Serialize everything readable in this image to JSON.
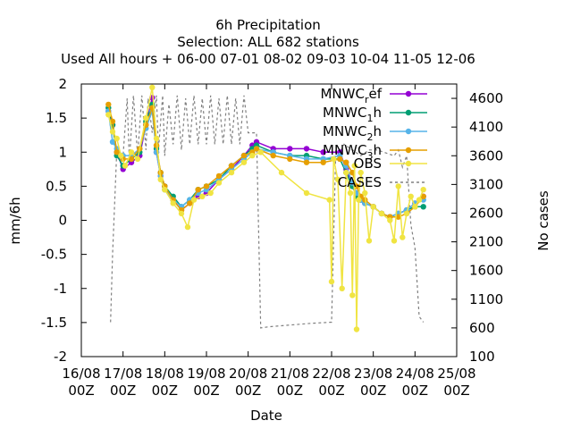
{
  "chart_data": {
    "type": "line",
    "title": [
      "6h Precipitation",
      "Selection: ALL     682 stations",
      "Used  All hours  + 06-00 07-01 08-02 09-03 10-04 11-05 12-06"
    ],
    "xlabel": "Date",
    "ylabel": "mm/6h",
    "y2label": "No cases",
    "xlim": [
      0,
      9
    ],
    "ylim": [
      -2,
      2
    ],
    "y2lim": [
      100,
      4850
    ],
    "xticks": [
      "16/08\n00Z",
      "17/08\n00Z",
      "18/08\n00Z",
      "19/08\n00Z",
      "20/08\n00Z",
      "21/08\n00Z",
      "22/08\n00Z",
      "23/08\n00Z",
      "24/08\n00Z",
      "25/08\n00Z"
    ],
    "yticks": [
      -2,
      -1.5,
      -1,
      -0.5,
      0,
      0.5,
      1,
      1.5,
      2
    ],
    "y2ticks": [
      100,
      600,
      1100,
      1600,
      2100,
      2600,
      3100,
      3600,
      4100,
      4600
    ],
    "legend_position": "top-right",
    "series": [
      {
        "name": "MNWC_ref",
        "color": "#9400d3",
        "axis": "y",
        "x": [
          0.65,
          0.75,
          0.85,
          1.0,
          1.2,
          1.4,
          1.55,
          1.7,
          1.8,
          1.9,
          2.0,
          2.2,
          2.4,
          2.6,
          2.8,
          3.0,
          3.3,
          3.6,
          3.9,
          4.1,
          4.2,
          4.6,
          5.0,
          5.4,
          5.8,
          6.2,
          6.35,
          6.5,
          6.6,
          6.7,
          6.8,
          7.0,
          7.2,
          7.4,
          7.6,
          7.8,
          8.0,
          8.2
        ],
        "y": [
          1.6,
          1.4,
          1.0,
          0.75,
          0.85,
          0.95,
          1.4,
          1.8,
          1.0,
          0.65,
          0.5,
          0.3,
          0.15,
          0.25,
          0.35,
          0.4,
          0.6,
          0.75,
          0.95,
          1.1,
          1.15,
          1.05,
          1.05,
          1.05,
          1.0,
          1.0,
          0.75,
          0.5,
          0.4,
          0.3,
          0.25,
          0.2,
          0.1,
          0.05,
          0.1,
          0.15,
          0.25,
          0.35
        ]
      },
      {
        "name": "MNWC_1h",
        "color": "#009e73",
        "axis": "y",
        "x": [
          0.65,
          0.75,
          0.85,
          1.0,
          1.2,
          1.4,
          1.55,
          1.7,
          1.8,
          1.9,
          2.0,
          2.2,
          2.4,
          2.6,
          2.8,
          3.0,
          3.3,
          3.6,
          3.9,
          4.1,
          4.2,
          4.6,
          5.0,
          5.4,
          5.8,
          6.2,
          6.35,
          6.5,
          6.6,
          6.7,
          6.8,
          7.0,
          7.2,
          7.4,
          7.6,
          7.8,
          8.0,
          8.2
        ],
        "y": [
          1.65,
          1.4,
          0.95,
          0.8,
          0.9,
          1.0,
          1.45,
          1.7,
          1.05,
          0.7,
          0.5,
          0.35,
          0.2,
          0.3,
          0.45,
          0.5,
          0.6,
          0.8,
          0.95,
          1.05,
          1.1,
          1.0,
          0.95,
          0.95,
          0.9,
          0.9,
          0.7,
          0.5,
          0.35,
          0.3,
          0.25,
          0.2,
          0.1,
          0.05,
          0.1,
          0.15,
          0.2,
          0.2
        ]
      },
      {
        "name": "MNWC_2h",
        "color": "#56b4e9",
        "axis": "y",
        "x": [
          0.65,
          0.75,
          0.85,
          1.0,
          1.2,
          1.4,
          1.55,
          1.7,
          1.8,
          1.9,
          2.0,
          2.2,
          2.4,
          2.6,
          2.8,
          3.0,
          3.3,
          3.6,
          3.9,
          4.1,
          4.2,
          4.6,
          5.0,
          5.4,
          5.8,
          6.2,
          6.35,
          6.5,
          6.6,
          6.7,
          6.8,
          7.0,
          7.2,
          7.4,
          7.6,
          7.8,
          8.0,
          8.2
        ],
        "y": [
          1.6,
          1.15,
          1.05,
          0.95,
          0.95,
          1.05,
          1.35,
          1.6,
          1.0,
          0.65,
          0.45,
          0.3,
          0.2,
          0.3,
          0.4,
          0.45,
          0.6,
          0.75,
          0.9,
          1.0,
          1.05,
          1.0,
          0.95,
          0.9,
          0.9,
          0.95,
          0.8,
          0.55,
          0.4,
          0.3,
          0.25,
          0.2,
          0.1,
          0.05,
          0.1,
          0.15,
          0.25,
          0.3
        ]
      },
      {
        "name": "MNWC_3h",
        "color": "#e69f00",
        "axis": "y",
        "x": [
          0.65,
          0.75,
          0.85,
          1.0,
          1.2,
          1.4,
          1.55,
          1.7,
          1.8,
          1.9,
          2.0,
          2.2,
          2.4,
          2.6,
          2.8,
          3.0,
          3.3,
          3.6,
          3.9,
          4.1,
          4.2,
          4.6,
          5.0,
          5.4,
          5.8,
          6.2,
          6.35,
          6.5,
          6.6,
          6.7,
          6.8,
          7.0,
          7.2,
          7.4,
          7.6,
          7.8,
          8.0,
          8.2
        ],
        "y": [
          1.7,
          1.45,
          1.0,
          0.9,
          0.9,
          1.05,
          1.4,
          1.65,
          1.1,
          0.7,
          0.5,
          0.3,
          0.15,
          0.25,
          0.45,
          0.5,
          0.65,
          0.8,
          0.95,
          1.0,
          1.05,
          0.95,
          0.9,
          0.85,
          0.85,
          0.9,
          0.85,
          0.7,
          0.5,
          0.35,
          0.3,
          0.2,
          0.1,
          0.05,
          0.05,
          0.1,
          0.2,
          0.35
        ]
      },
      {
        "name": "OBS",
        "color": "#f0e442",
        "axis": "y",
        "x": [
          0.65,
          0.75,
          0.85,
          0.95,
          1.05,
          1.2,
          1.35,
          1.55,
          1.7,
          1.8,
          1.9,
          2.0,
          2.2,
          2.4,
          2.55,
          2.7,
          2.9,
          3.1,
          3.3,
          3.6,
          3.9,
          4.1,
          4.3,
          4.8,
          5.4,
          5.95,
          6.0,
          6.05,
          6.15,
          6.25,
          6.35,
          6.45,
          6.5,
          6.55,
          6.6,
          6.65,
          6.7,
          6.8,
          6.9,
          7.0,
          7.2,
          7.4,
          7.5,
          7.6,
          7.7,
          7.8,
          7.9,
          8.0,
          8.1,
          8.2
        ],
        "y": [
          1.55,
          1.3,
          1.2,
          0.95,
          0.8,
          1.0,
          0.9,
          1.5,
          1.95,
          1.2,
          0.6,
          0.45,
          0.25,
          0.1,
          -0.1,
          0.3,
          0.35,
          0.4,
          0.55,
          0.7,
          0.85,
          0.95,
          1.0,
          0.7,
          0.4,
          0.3,
          -0.9,
          0.9,
          0.6,
          -1.0,
          0.7,
          0.4,
          -1.1,
          0.8,
          -1.6,
          0.3,
          0.7,
          0.4,
          -0.3,
          0.2,
          0.1,
          0.0,
          -0.3,
          0.5,
          -0.25,
          0.1,
          0.35,
          0.2,
          0.3,
          0.45
        ]
      },
      {
        "name": "CASES",
        "color": "#808080",
        "axis": "y2",
        "dash": "3,3",
        "x": [
          0.7,
          0.75,
          0.85,
          1.0,
          1.1,
          1.15,
          1.25,
          1.35,
          1.45,
          1.55,
          1.6,
          1.7,
          1.8,
          1.85,
          1.95,
          2.0,
          2.1,
          2.2,
          2.3,
          2.4,
          2.5,
          2.6,
          2.7,
          2.8,
          2.9,
          3.0,
          3.1,
          3.2,
          3.3,
          3.4,
          3.5,
          3.6,
          3.7,
          3.8,
          3.9,
          4.0,
          4.2,
          4.3,
          4.5,
          5.0,
          5.5,
          6.0,
          6.1,
          6.2,
          6.3,
          6.5,
          6.7,
          6.9,
          7.1,
          7.3,
          7.5,
          7.6,
          7.7,
          7.8,
          7.9,
          8.0,
          8.1,
          8.2
        ],
        "y": [
          700,
          1900,
          3700,
          3600,
          4600,
          3500,
          4650,
          3600,
          4650,
          3700,
          4600,
          4000,
          4650,
          3700,
          4650,
          3600,
          4500,
          3800,
          4650,
          3700,
          4600,
          3800,
          4650,
          3800,
          4600,
          3800,
          4650,
          3800,
          4600,
          3800,
          4650,
          3800,
          4600,
          3800,
          4650,
          4000,
          4000,
          600,
          620,
          650,
          680,
          700,
          3700,
          3650,
          3800,
          3700,
          3600,
          3700,
          3700,
          3650,
          3600,
          3700,
          3400,
          3600,
          2400,
          2000,
          800,
          700
        ]
      }
    ]
  }
}
